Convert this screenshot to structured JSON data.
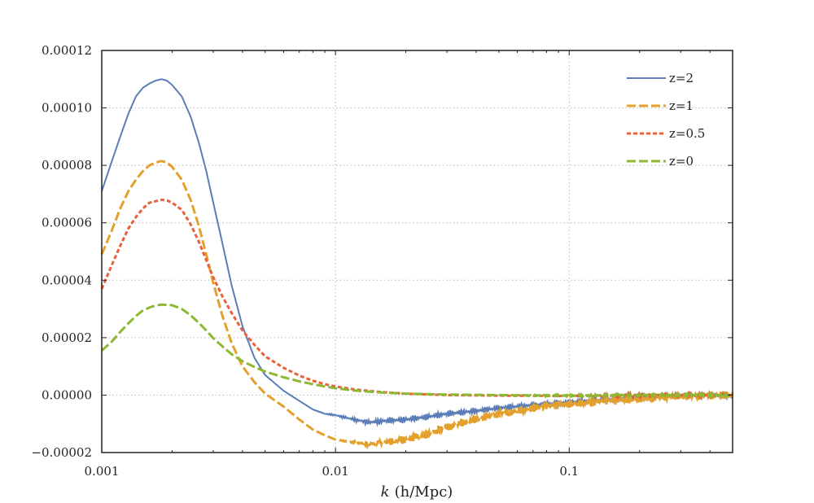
{
  "chart_data": {
    "type": "line",
    "title": "",
    "xlabel": "k (h/Mpc)",
    "xlabel_var": "k",
    "xlabel_unit": "(h/Mpc)",
    "ylabel": "",
    "xscale": "log",
    "xlim": [
      0.001,
      0.5
    ],
    "ylim": [
      -2e-05,
      0.00012
    ],
    "grid": true,
    "legend_position": "top-right",
    "x_ticks": [
      {
        "value": 0.001,
        "label": "0.001"
      },
      {
        "value": 0.01,
        "label": "0.01"
      },
      {
        "value": 0.1,
        "label": "0.1"
      }
    ],
    "y_ticks": [
      {
        "value": -2e-05,
        "label": "−0.00002"
      },
      {
        "value": 0.0,
        "label": "0.00000"
      },
      {
        "value": 2e-05,
        "label": "0.00002"
      },
      {
        "value": 4e-05,
        "label": "0.00004"
      },
      {
        "value": 6e-05,
        "label": "0.00006"
      },
      {
        "value": 8e-05,
        "label": "0.00008"
      },
      {
        "value": 0.0001,
        "label": "0.00010"
      },
      {
        "value": 0.00012,
        "label": "0.00012"
      }
    ],
    "series": [
      {
        "name": "z=2",
        "color": "#5b7db7",
        "style": "solid",
        "noise_start": 0.008,
        "noise_amplitude": 1.2e-06,
        "points": [
          [
            0.001,
            7.1e-05
          ],
          [
            0.0011,
            8.1e-05
          ],
          [
            0.0012,
            9e-05
          ],
          [
            0.0013,
            9.8e-05
          ],
          [
            0.0014,
            0.000104
          ],
          [
            0.0015,
            0.000107
          ],
          [
            0.0016,
            0.0001085
          ],
          [
            0.0017,
            0.0001095
          ],
          [
            0.0018,
            0.00011
          ],
          [
            0.0019,
            0.0001095
          ],
          [
            0.002,
            0.000108
          ],
          [
            0.0022,
            0.000104
          ],
          [
            0.0024,
            9.7e-05
          ],
          [
            0.0026,
            8.8e-05
          ],
          [
            0.0028,
            7.8e-05
          ],
          [
            0.003,
            6.7e-05
          ],
          [
            0.0033,
            5.2e-05
          ],
          [
            0.0036,
            3.8e-05
          ],
          [
            0.004,
            2.4e-05
          ],
          [
            0.0045,
            1.3e-05
          ],
          [
            0.005,
            7e-06
          ],
          [
            0.006,
            1.5e-06
          ],
          [
            0.007,
            -2e-06
          ],
          [
            0.008,
            -5e-06
          ],
          [
            0.009,
            -6.5e-06
          ],
          [
            0.01,
            -7e-06
          ],
          [
            0.012,
            -8.5e-06
          ],
          [
            0.014,
            -9.5e-06
          ],
          [
            0.016,
            -9e-06
          ],
          [
            0.02,
            -8.5e-06
          ],
          [
            0.025,
            -7.5e-06
          ],
          [
            0.03,
            -6.5e-06
          ],
          [
            0.04,
            -5.5e-06
          ],
          [
            0.05,
            -4.5e-06
          ],
          [
            0.07,
            -3.5e-06
          ],
          [
            0.1,
            -2.5e-06
          ],
          [
            0.15,
            -1.5e-06
          ],
          [
            0.2,
            -8e-07
          ],
          [
            0.3,
            -3e-07
          ],
          [
            0.4,
            0.0
          ],
          [
            0.5,
            -5e-07
          ]
        ]
      },
      {
        "name": "z=1",
        "color": "#e4a02c",
        "style": "dashed",
        "noise_start": 0.01,
        "noise_amplitude": 1.5e-06,
        "points": [
          [
            0.001,
            4.9e-05
          ],
          [
            0.0011,
            5.7e-05
          ],
          [
            0.0012,
            6.5e-05
          ],
          [
            0.0013,
            7.1e-05
          ],
          [
            0.0014,
            7.5e-05
          ],
          [
            0.0015,
            7.8e-05
          ],
          [
            0.0016,
            8e-05
          ],
          [
            0.0017,
            8.1e-05
          ],
          [
            0.0018,
            8.15e-05
          ],
          [
            0.0019,
            8.1e-05
          ],
          [
            0.002,
            7.95e-05
          ],
          [
            0.0022,
            7.5e-05
          ],
          [
            0.0024,
            6.8e-05
          ],
          [
            0.0026,
            5.9e-05
          ],
          [
            0.0028,
            4.9e-05
          ],
          [
            0.003,
            3.9e-05
          ],
          [
            0.0033,
            2.7e-05
          ],
          [
            0.0036,
            1.8e-05
          ],
          [
            0.004,
            1e-05
          ],
          [
            0.0045,
            4.5e-06
          ],
          [
            0.005,
            5e-07
          ],
          [
            0.006,
            -4e-06
          ],
          [
            0.007,
            -8.5e-06
          ],
          [
            0.008,
            -1.2e-05
          ],
          [
            0.009,
            -1.4e-05
          ],
          [
            0.01,
            -1.55e-05
          ],
          [
            0.012,
            -1.65e-05
          ],
          [
            0.014,
            -1.7e-05
          ],
          [
            0.016,
            -1.65e-05
          ],
          [
            0.02,
            -1.55e-05
          ],
          [
            0.025,
            -1.35e-05
          ],
          [
            0.03,
            -1.1e-05
          ],
          [
            0.04,
            -8.5e-06
          ],
          [
            0.05,
            -6.5e-06
          ],
          [
            0.07,
            -4.5e-06
          ],
          [
            0.1,
            -3e-06
          ],
          [
            0.15,
            -2e-06
          ],
          [
            0.2,
            -1.2e-06
          ],
          [
            0.3,
            -5e-07
          ],
          [
            0.4,
            0.0
          ],
          [
            0.5,
            0.0
          ]
        ]
      },
      {
        "name": "z=0.5",
        "color": "#e8613a",
        "style": "dotted",
        "noise_start": 0.08,
        "noise_amplitude": 6e-07,
        "points": [
          [
            0.001,
            3.7e-05
          ],
          [
            0.0011,
            4.5e-05
          ],
          [
            0.0012,
            5.2e-05
          ],
          [
            0.0013,
            5.8e-05
          ],
          [
            0.0014,
            6.2e-05
          ],
          [
            0.0015,
            6.5e-05
          ],
          [
            0.0016,
            6.7e-05
          ],
          [
            0.0017,
            6.75e-05
          ],
          [
            0.0018,
            6.8e-05
          ],
          [
            0.0019,
            6.78e-05
          ],
          [
            0.002,
            6.7e-05
          ],
          [
            0.0022,
            6.45e-05
          ],
          [
            0.0024,
            5.95e-05
          ],
          [
            0.0026,
            5.35e-05
          ],
          [
            0.0028,
            4.7e-05
          ],
          [
            0.003,
            4.1e-05
          ],
          [
            0.0033,
            3.4e-05
          ],
          [
            0.0036,
            2.85e-05
          ],
          [
            0.004,
            2.25e-05
          ],
          [
            0.0045,
            1.75e-05
          ],
          [
            0.005,
            1.35e-05
          ],
          [
            0.006,
            9.5e-06
          ],
          [
            0.007,
            6.8e-06
          ],
          [
            0.008,
            5e-06
          ],
          [
            0.009,
            3.8e-06
          ],
          [
            0.01,
            3e-06
          ],
          [
            0.012,
            2e-06
          ],
          [
            0.015,
            1.2e-06
          ],
          [
            0.02,
            5e-07
          ],
          [
            0.03,
            0.0
          ],
          [
            0.05,
            -2e-07
          ],
          [
            0.1,
            -3e-07
          ],
          [
            0.2,
            0.0
          ],
          [
            0.3,
            0.0
          ],
          [
            0.5,
            0.0
          ]
        ]
      },
      {
        "name": "z=0",
        "color": "#8db832",
        "style": "dashed",
        "noise_start": 0.05,
        "noise_amplitude": 4e-07,
        "points": [
          [
            0.001,
            1.55e-05
          ],
          [
            0.0011,
            1.85e-05
          ],
          [
            0.0012,
            2.2e-05
          ],
          [
            0.0013,
            2.5e-05
          ],
          [
            0.0014,
            2.75e-05
          ],
          [
            0.0015,
            2.95e-05
          ],
          [
            0.0016,
            3.05e-05
          ],
          [
            0.0017,
            3.12e-05
          ],
          [
            0.0018,
            3.15e-05
          ],
          [
            0.0019,
            3.14e-05
          ],
          [
            0.002,
            3.13e-05
          ],
          [
            0.0022,
            3e-05
          ],
          [
            0.0024,
            2.78e-05
          ],
          [
            0.0026,
            2.52e-05
          ],
          [
            0.0028,
            2.25e-05
          ],
          [
            0.003,
            1.98e-05
          ],
          [
            0.0033,
            1.68e-05
          ],
          [
            0.0036,
            1.42e-05
          ],
          [
            0.004,
            1.18e-05
          ],
          [
            0.0045,
            9.8e-06
          ],
          [
            0.005,
            8.2e-06
          ],
          [
            0.006,
            6.2e-06
          ],
          [
            0.007,
            4.8e-06
          ],
          [
            0.008,
            3.8e-06
          ],
          [
            0.009,
            3e-06
          ],
          [
            0.01,
            2.4e-06
          ],
          [
            0.012,
            1.6e-06
          ],
          [
            0.015,
            1e-06
          ],
          [
            0.02,
            5e-07
          ],
          [
            0.03,
            2e-07
          ],
          [
            0.05,
            0.0
          ],
          [
            0.1,
            -2e-07
          ],
          [
            0.2,
            0.0
          ],
          [
            0.5,
            0.0
          ]
        ]
      }
    ]
  }
}
